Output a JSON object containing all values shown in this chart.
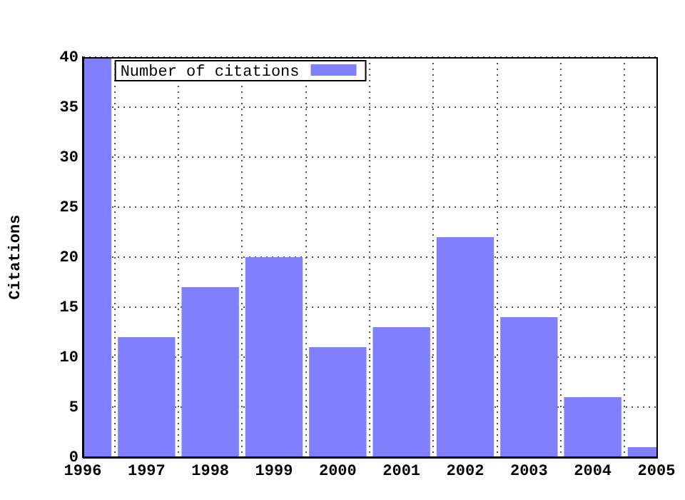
{
  "chart_data": {
    "type": "bar",
    "ylabel": "Citations",
    "x": [
      1996,
      1997,
      1998,
      1999,
      2000,
      2001,
      2002,
      2003,
      2004,
      2005
    ],
    "series": [
      {
        "name": "Number of citations",
        "color": "#8080ff",
        "values": [
          40,
          12,
          17,
          20,
          11,
          13,
          22,
          14,
          6,
          1
        ]
      }
    ],
    "xlim": [
      1996,
      2005
    ],
    "xticks": [
      1996,
      1997,
      1998,
      1999,
      2000,
      2001,
      2002,
      2003,
      2004,
      2005
    ],
    "ylim": [
      0,
      40
    ],
    "yticks": [
      0,
      5,
      10,
      15,
      20,
      25,
      30,
      35,
      40
    ],
    "grid": true,
    "legend": "top left"
  }
}
